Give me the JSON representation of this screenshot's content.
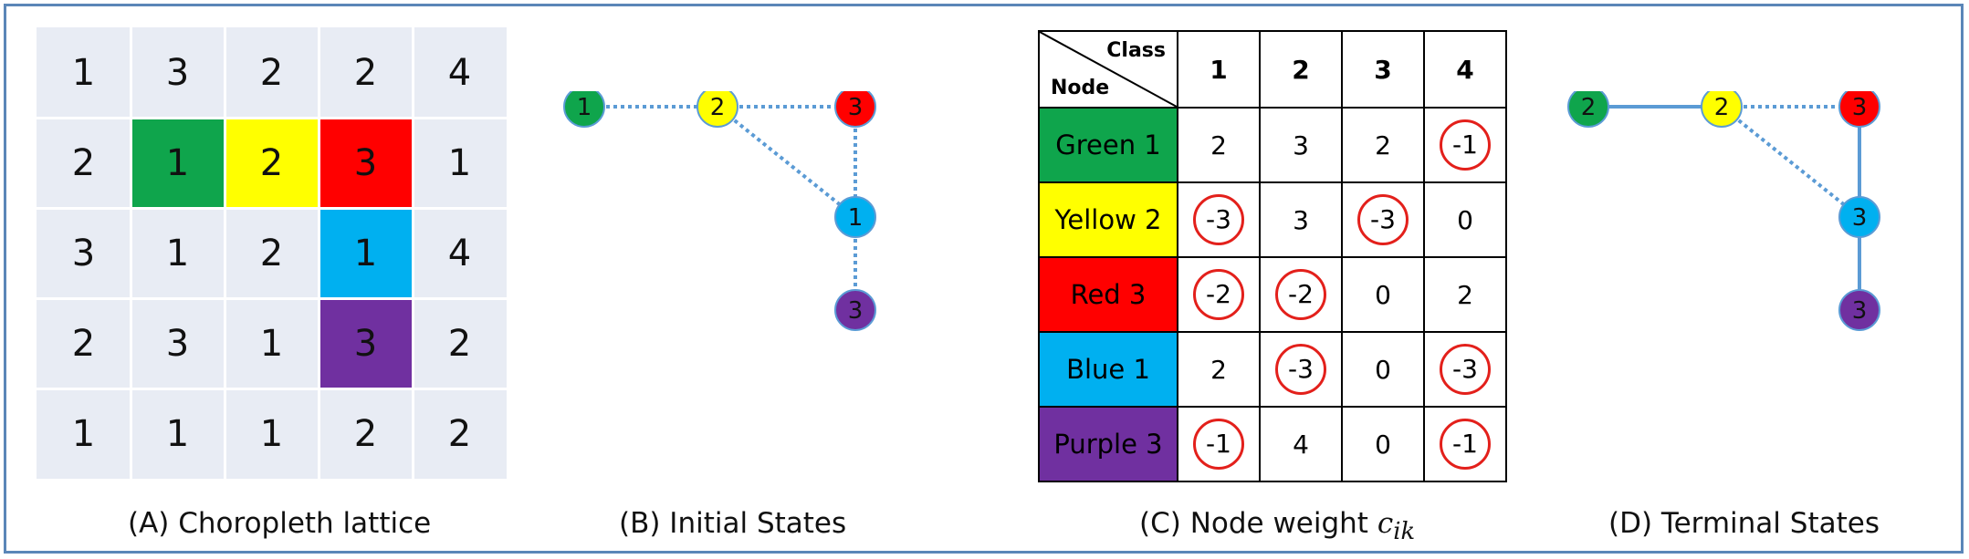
{
  "colors": {
    "green": "#0fa54c",
    "yellow": "#ffff00",
    "red": "#ff0000",
    "blue": "#00b0f0",
    "purple": "#7030a0",
    "lattice_bg": "#e8ecf4",
    "edge": "#5b9bd5",
    "circle_mark": "#e3201b"
  },
  "panel_a": {
    "caption": "(A) Choropleth lattice",
    "grid": [
      [
        "1",
        "3",
        "2",
        "2",
        "4"
      ],
      [
        "2",
        "1",
        "2",
        "3",
        "1"
      ],
      [
        "3",
        "1",
        "2",
        "1",
        "4"
      ],
      [
        "2",
        "3",
        "1",
        "3",
        "2"
      ],
      [
        "1",
        "1",
        "1",
        "2",
        "2"
      ]
    ],
    "highlighted_cells": [
      {
        "row": 1,
        "col": 1,
        "color": "green"
      },
      {
        "row": 1,
        "col": 2,
        "color": "yellow"
      },
      {
        "row": 1,
        "col": 3,
        "color": "red"
      },
      {
        "row": 2,
        "col": 3,
        "color": "blue"
      },
      {
        "row": 3,
        "col": 3,
        "color": "purple"
      }
    ]
  },
  "panel_b": {
    "caption": "(B) Initial States",
    "nodes": {
      "green": "1",
      "yellow": "2",
      "red": "3",
      "blue": "1",
      "purple": "3"
    },
    "edges": [
      {
        "from": "green",
        "to": "yellow",
        "style": "dotted"
      },
      {
        "from": "yellow",
        "to": "red",
        "style": "dotted"
      },
      {
        "from": "yellow",
        "to": "blue",
        "style": "dotted"
      },
      {
        "from": "red",
        "to": "blue",
        "style": "dotted"
      },
      {
        "from": "blue",
        "to": "purple",
        "style": "dotted"
      }
    ]
  },
  "panel_c": {
    "caption_prefix": "(C) Node weight ",
    "caption_symbol": "c",
    "caption_subscript": "ik",
    "corner_class": "Class",
    "corner_node": "Node",
    "columns": [
      "1",
      "2",
      "3",
      "4"
    ],
    "rows": [
      {
        "label": "Green 1",
        "color": "green",
        "values": [
          {
            "v": "2",
            "circled": false
          },
          {
            "v": "3",
            "circled": false
          },
          {
            "v": "2",
            "circled": false
          },
          {
            "v": "-1",
            "circled": true
          }
        ]
      },
      {
        "label": "Yellow 2",
        "color": "yellow",
        "values": [
          {
            "v": "-3",
            "circled": true
          },
          {
            "v": "3",
            "circled": false
          },
          {
            "v": "-3",
            "circled": true
          },
          {
            "v": "0",
            "circled": false
          }
        ]
      },
      {
        "label": "Red 3",
        "color": "red",
        "values": [
          {
            "v": "-2",
            "circled": true
          },
          {
            "v": "-2",
            "circled": true
          },
          {
            "v": "0",
            "circled": false
          },
          {
            "v": "2",
            "circled": false
          }
        ]
      },
      {
        "label": "Blue 1",
        "color": "blue",
        "values": [
          {
            "v": "2",
            "circled": false
          },
          {
            "v": "-3",
            "circled": true
          },
          {
            "v": "0",
            "circled": false
          },
          {
            "v": "-3",
            "circled": true
          }
        ]
      },
      {
        "label": "Purple 3",
        "color": "purple",
        "values": [
          {
            "v": "-1",
            "circled": true
          },
          {
            "v": "4",
            "circled": false
          },
          {
            "v": "0",
            "circled": false
          },
          {
            "v": "-1",
            "circled": true
          }
        ]
      }
    ]
  },
  "panel_d": {
    "caption": "(D) Terminal States",
    "nodes": {
      "green": "2",
      "yellow": "2",
      "red": "3",
      "blue": "3",
      "purple": "3"
    },
    "edges": [
      {
        "from": "green",
        "to": "yellow",
        "style": "solid"
      },
      {
        "from": "yellow",
        "to": "red",
        "style": "dotted"
      },
      {
        "from": "yellow",
        "to": "blue",
        "style": "dotted"
      },
      {
        "from": "red",
        "to": "blue",
        "style": "solid"
      },
      {
        "from": "blue",
        "to": "purple",
        "style": "solid"
      }
    ]
  }
}
